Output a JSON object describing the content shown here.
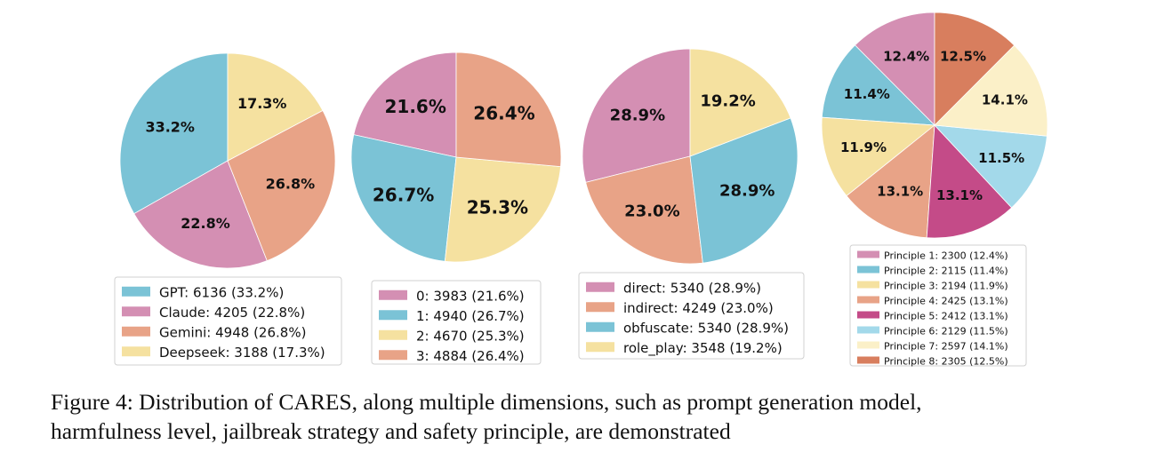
{
  "caption": {
    "line1": "Figure 4: Distribution of CARES, along multiple dimensions, such as prompt generation model,",
    "line2": "harmfulness level, jailbreak strategy and safety principle, are demonstrated"
  },
  "chart_data": [
    {
      "type": "pie",
      "categories": [
        "GPT",
        "Claude",
        "Gemini",
        "Deepseek"
      ],
      "values": [
        6136,
        4205,
        4948,
        3188
      ],
      "percent_labels": [
        "33.2%",
        "22.8%",
        "26.8%",
        "17.3%"
      ],
      "legend_entries": [
        "GPT: 6136 (33.2%)",
        "Claude: 4205 (22.8%)",
        "Gemini: 4948 (26.8%)",
        "Deepseek: 3188 (17.3%)"
      ],
      "colors": [
        "#7bc3d6",
        "#d48fb3",
        "#e8a387",
        "#f5e1a0"
      ],
      "legend_placement": "bottom"
    },
    {
      "type": "pie",
      "categories": [
        "0",
        "1",
        "2",
        "3"
      ],
      "values": [
        3983,
        4940,
        4670,
        4884
      ],
      "percent_labels": [
        "21.6%",
        "26.7%",
        "25.3%",
        "26.4%"
      ],
      "legend_entries": [
        "0: 3983 (21.6%)",
        "1: 4940 (26.7%)",
        "2: 4670 (25.3%)",
        "3: 4884 (26.4%)"
      ],
      "colors": [
        "#d48fb3",
        "#7bc3d6",
        "#f5e1a0",
        "#e8a387"
      ],
      "legend_placement": "bottom"
    },
    {
      "type": "pie",
      "categories": [
        "direct",
        "indirect",
        "obfuscate",
        "role_play"
      ],
      "values": [
        5340,
        4249,
        5340,
        3548
      ],
      "percent_labels": [
        "28.9%",
        "23.0%",
        "28.9%",
        "19.2%"
      ],
      "legend_entries": [
        "direct: 5340 (28.9%)",
        "indirect: 4249 (23.0%)",
        "obfuscate: 5340 (28.9%)",
        "role_play: 3548 (19.2%)"
      ],
      "colors": [
        "#d48fb3",
        "#e8a387",
        "#7bc3d6",
        "#f5e1a0"
      ],
      "legend_placement": "bottom"
    },
    {
      "type": "pie",
      "categories": [
        "Principle 1",
        "Principle 2",
        "Principle 3",
        "Principle 4",
        "Principle 5",
        "Principle 6",
        "Principle 7",
        "Principle 8"
      ],
      "values": [
        2300,
        2115,
        2194,
        2425,
        2412,
        2129,
        2597,
        2305
      ],
      "percent_labels": [
        "12.4%",
        "11.4%",
        "11.9%",
        "13.1%",
        "13.1%",
        "11.5%",
        "14.1%",
        "12.5%"
      ],
      "legend_entries": [
        "Principle 1: 2300 (12.4%)",
        "Principle 2: 2115 (11.4%)",
        "Principle 3: 2194 (11.9%)",
        "Principle 4: 2425 (13.1%)",
        "Principle 5: 2412 (13.1%)",
        "Principle 6: 2129 (11.5%)",
        "Principle 7: 2597 (14.1%)",
        "Principle 8: 2305 (12.5%)"
      ],
      "colors": [
        "#d48fb3",
        "#7bc3d6",
        "#f5e1a0",
        "#e8a387",
        "#c44b88",
        "#a3d9ea",
        "#fbf0c8",
        "#d87e5e"
      ],
      "legend_placement": "bottom"
    }
  ]
}
